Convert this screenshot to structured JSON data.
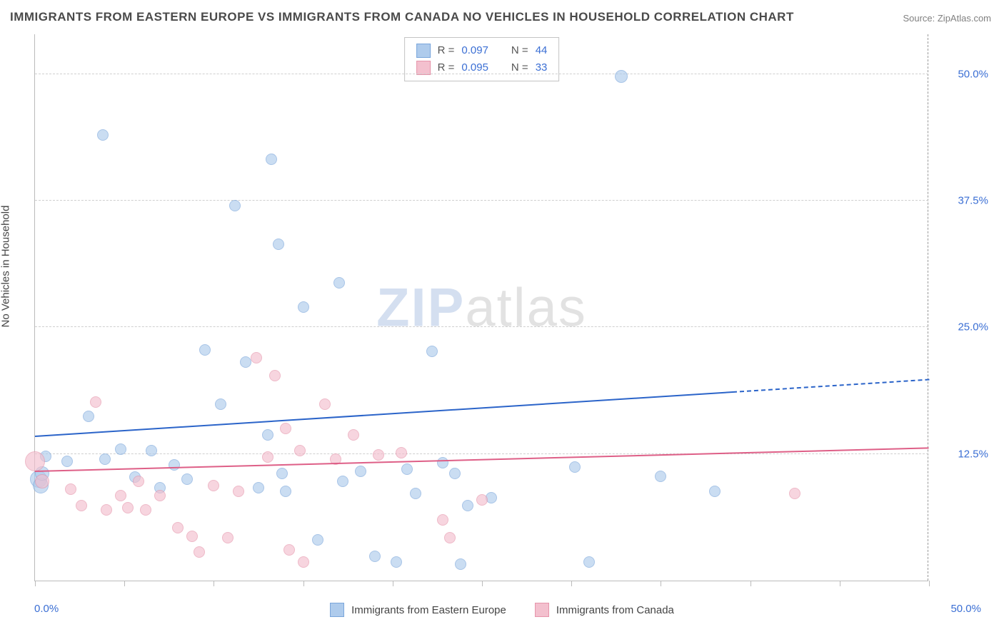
{
  "title": "IMMIGRANTS FROM EASTERN EUROPE VS IMMIGRANTS FROM CANADA NO VEHICLES IN HOUSEHOLD CORRELATION CHART",
  "source": "Source: ZipAtlas.com",
  "ylabel": "No Vehicles in Household",
  "watermark_text": "ZIPatlas",
  "chart": {
    "type": "scatter",
    "xlim": [
      0,
      50
    ],
    "ylim": [
      0,
      54
    ],
    "x_axis_labels": {
      "min": "0.0%",
      "max": "50.0%"
    },
    "y_ticks": [
      12.5,
      25.0,
      37.5,
      50.0
    ],
    "y_tick_labels": [
      "12.5%",
      "25.0%",
      "37.5%",
      "50.0%"
    ],
    "x_tick_positions": [
      0,
      5,
      10,
      15,
      20,
      25,
      30,
      35,
      40,
      45,
      50
    ],
    "background_color": "#ffffff",
    "grid_color": "#cfcfcf",
    "grid_dash": true,
    "series": [
      {
        "name": "Immigrants from Eastern Europe",
        "fill_color": "#aecbec",
        "stroke_color": "#7aa6db",
        "fill_opacity": 0.65,
        "marker_radius": 8,
        "r_value": "0.097",
        "n_value": "44",
        "trend": {
          "y_at_x0": 14.2,
          "y_at_x50": 19.8,
          "solid_until_x": 39,
          "color": "#2b64c9"
        },
        "points": [
          {
            "x": 0.2,
            "y": 10.0,
            "r": 12
          },
          {
            "x": 0.3,
            "y": 9.4,
            "r": 11
          },
          {
            "x": 0.4,
            "y": 10.6,
            "r": 10
          },
          {
            "x": 0.6,
            "y": 12.3,
            "r": 8
          },
          {
            "x": 1.8,
            "y": 11.8,
            "r": 8
          },
          {
            "x": 3.0,
            "y": 16.2,
            "r": 8
          },
          {
            "x": 3.8,
            "y": 44.0,
            "r": 8
          },
          {
            "x": 3.9,
            "y": 12.0,
            "r": 8
          },
          {
            "x": 4.8,
            "y": 13.0,
            "r": 8
          },
          {
            "x": 5.6,
            "y": 10.2,
            "r": 8
          },
          {
            "x": 6.5,
            "y": 12.8,
            "r": 8
          },
          {
            "x": 7.0,
            "y": 9.2,
            "r": 8
          },
          {
            "x": 7.8,
            "y": 11.4,
            "r": 8
          },
          {
            "x": 8.5,
            "y": 10.0,
            "r": 8
          },
          {
            "x": 9.5,
            "y": 22.8,
            "r": 8
          },
          {
            "x": 10.4,
            "y": 17.4,
            "r": 8
          },
          {
            "x": 11.2,
            "y": 37.0,
            "r": 8
          },
          {
            "x": 11.8,
            "y": 21.6,
            "r": 8
          },
          {
            "x": 12.5,
            "y": 9.2,
            "r": 8
          },
          {
            "x": 13.0,
            "y": 14.4,
            "r": 8
          },
          {
            "x": 13.2,
            "y": 41.6,
            "r": 8
          },
          {
            "x": 13.6,
            "y": 33.2,
            "r": 8
          },
          {
            "x": 13.8,
            "y": 10.6,
            "r": 8
          },
          {
            "x": 14.0,
            "y": 8.8,
            "r": 8
          },
          {
            "x": 15.0,
            "y": 27.0,
            "r": 8
          },
          {
            "x": 15.8,
            "y": 4.0,
            "r": 8
          },
          {
            "x": 17.0,
            "y": 29.4,
            "r": 8
          },
          {
            "x": 17.2,
            "y": 9.8,
            "r": 8
          },
          {
            "x": 18.2,
            "y": 10.8,
            "r": 8
          },
          {
            "x": 19.0,
            "y": 2.4,
            "r": 8
          },
          {
            "x": 20.2,
            "y": 1.8,
            "r": 8
          },
          {
            "x": 20.8,
            "y": 11.0,
            "r": 8
          },
          {
            "x": 21.3,
            "y": 8.6,
            "r": 8
          },
          {
            "x": 22.2,
            "y": 22.6,
            "r": 8
          },
          {
            "x": 22.8,
            "y": 11.6,
            "r": 8
          },
          {
            "x": 23.5,
            "y": 10.6,
            "r": 8
          },
          {
            "x": 23.8,
            "y": 1.6,
            "r": 8
          },
          {
            "x": 24.2,
            "y": 7.4,
            "r": 8
          },
          {
            "x": 25.5,
            "y": 8.2,
            "r": 8
          },
          {
            "x": 30.2,
            "y": 11.2,
            "r": 8
          },
          {
            "x": 31.0,
            "y": 1.8,
            "r": 8
          },
          {
            "x": 32.8,
            "y": 49.8,
            "r": 9
          },
          {
            "x": 35.0,
            "y": 10.3,
            "r": 8
          },
          {
            "x": 38.0,
            "y": 8.8,
            "r": 8
          }
        ]
      },
      {
        "name": "Immigrants from Canada",
        "fill_color": "#f3c0ce",
        "stroke_color": "#e695ab",
        "fill_opacity": 0.65,
        "marker_radius": 8,
        "r_value": "0.095",
        "n_value": "33",
        "trend": {
          "y_at_x0": 10.7,
          "y_at_x50": 13.0,
          "solid_until_x": 50,
          "color": "#de5f87"
        },
        "points": [
          {
            "x": 0.0,
            "y": 11.8,
            "r": 14
          },
          {
            "x": 0.4,
            "y": 9.8,
            "r": 10
          },
          {
            "x": 2.0,
            "y": 9.0,
            "r": 8
          },
          {
            "x": 2.6,
            "y": 7.4,
            "r": 8
          },
          {
            "x": 3.4,
            "y": 17.6,
            "r": 8
          },
          {
            "x": 4.0,
            "y": 7.0,
            "r": 8
          },
          {
            "x": 4.8,
            "y": 8.4,
            "r": 8
          },
          {
            "x": 5.2,
            "y": 7.2,
            "r": 8
          },
          {
            "x": 5.8,
            "y": 9.8,
            "r": 8
          },
          {
            "x": 6.2,
            "y": 7.0,
            "r": 8
          },
          {
            "x": 7.0,
            "y": 8.4,
            "r": 8
          },
          {
            "x": 8.0,
            "y": 5.2,
            "r": 8
          },
          {
            "x": 8.8,
            "y": 4.4,
            "r": 8
          },
          {
            "x": 9.2,
            "y": 2.8,
            "r": 8
          },
          {
            "x": 10.0,
            "y": 9.4,
            "r": 8
          },
          {
            "x": 10.8,
            "y": 4.2,
            "r": 8
          },
          {
            "x": 11.4,
            "y": 8.8,
            "r": 8
          },
          {
            "x": 12.4,
            "y": 22.0,
            "r": 8
          },
          {
            "x": 13.0,
            "y": 12.2,
            "r": 8
          },
          {
            "x": 13.4,
            "y": 20.2,
            "r": 8
          },
          {
            "x": 14.0,
            "y": 15.0,
            "r": 8
          },
          {
            "x": 14.2,
            "y": 3.0,
            "r": 8
          },
          {
            "x": 14.8,
            "y": 12.8,
            "r": 8
          },
          {
            "x": 15.0,
            "y": 1.8,
            "r": 8
          },
          {
            "x": 16.2,
            "y": 17.4,
            "r": 8
          },
          {
            "x": 16.8,
            "y": 12.0,
            "r": 8
          },
          {
            "x": 17.8,
            "y": 14.4,
            "r": 8
          },
          {
            "x": 19.2,
            "y": 12.4,
            "r": 8
          },
          {
            "x": 20.5,
            "y": 12.6,
            "r": 8
          },
          {
            "x": 22.8,
            "y": 6.0,
            "r": 8
          },
          {
            "x": 23.2,
            "y": 4.2,
            "r": 8
          },
          {
            "x": 25.0,
            "y": 8.0,
            "r": 8
          },
          {
            "x": 42.5,
            "y": 8.6,
            "r": 8
          }
        ]
      }
    ]
  },
  "legend": {
    "r_label": "R =",
    "n_label": "N =",
    "label_color": "#555555",
    "value_color": "#3b6fd4"
  },
  "colors": {
    "title": "#4a4a4a",
    "axis_text": "#444444",
    "tick_value": "#3b6fd4",
    "source_text": "#808080"
  }
}
